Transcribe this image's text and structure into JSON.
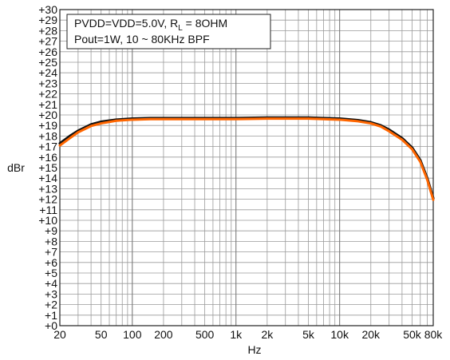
{
  "chart_data": {
    "type": "line",
    "title": "",
    "xlabel": "Hz",
    "ylabel": "dBr",
    "xscale": "log",
    "xlim": [
      20,
      80000
    ],
    "ylim": [
      0,
      30
    ],
    "grid": true,
    "x_tick_values": [
      20,
      50,
      100,
      200,
      500,
      1000,
      2000,
      5000,
      10000,
      20000,
      50000,
      80000
    ],
    "x_tick_labels": [
      "20",
      "50",
      "100",
      "200",
      "500",
      "1k",
      "2k",
      "5k",
      "10k",
      "20k",
      "50k",
      "80k"
    ],
    "y_tick_values": [
      0,
      1,
      2,
      3,
      4,
      5,
      6,
      7,
      8,
      9,
      10,
      11,
      12,
      13,
      14,
      15,
      16,
      17,
      18,
      19,
      20,
      21,
      22,
      23,
      24,
      25,
      26,
      27,
      28,
      29,
      30
    ],
    "y_tick_labels": [
      "+0",
      "+1",
      "+2",
      "+3",
      "+4",
      "+5",
      "+6",
      "+7",
      "+8",
      "+9",
      "+10",
      "+11",
      "+12",
      "+13",
      "+14",
      "+15",
      "+16",
      "+17",
      "+18",
      "+19",
      "+20",
      "+21",
      "+22",
      "+23",
      "+24",
      "+25",
      "+26",
      "+27",
      "+28",
      "+29",
      "+30"
    ],
    "annotation": {
      "line1_prefix": "PVDD=VDD=5.0V, R",
      "line1_sub": "L",
      "line1_suffix": " = 8OHM",
      "line2": "Pout=1W, 10 ~ 80KHz BPF"
    },
    "series": [
      {
        "color": "#111111",
        "x": [
          20,
          25,
          30,
          40,
          50,
          70,
          100,
          150,
          200,
          300,
          500,
          700,
          1000,
          2000,
          3000,
          5000,
          7000,
          10000,
          15000,
          20000,
          25000,
          30000,
          40000,
          50000,
          60000,
          70000,
          80000
        ],
        "y": [
          17.3,
          18.0,
          18.5,
          19.1,
          19.35,
          19.55,
          19.65,
          19.7,
          19.7,
          19.7,
          19.7,
          19.7,
          19.7,
          19.75,
          19.75,
          19.75,
          19.7,
          19.65,
          19.5,
          19.3,
          19.0,
          18.6,
          17.8,
          16.9,
          15.7,
          14.0,
          12.1
        ]
      },
      {
        "color": "#ff6600",
        "x": [
          20,
          25,
          30,
          40,
          50,
          70,
          100,
          150,
          200,
          300,
          500,
          700,
          1000,
          2000,
          3000,
          5000,
          7000,
          10000,
          15000,
          20000,
          25000,
          30000,
          40000,
          50000,
          60000,
          70000,
          80000
        ],
        "y": [
          17.1,
          17.8,
          18.35,
          18.95,
          19.2,
          19.45,
          19.55,
          19.6,
          19.6,
          19.6,
          19.6,
          19.6,
          19.6,
          19.65,
          19.65,
          19.65,
          19.6,
          19.55,
          19.4,
          19.2,
          18.9,
          18.45,
          17.65,
          16.75,
          15.55,
          13.85,
          11.95
        ]
      }
    ]
  }
}
